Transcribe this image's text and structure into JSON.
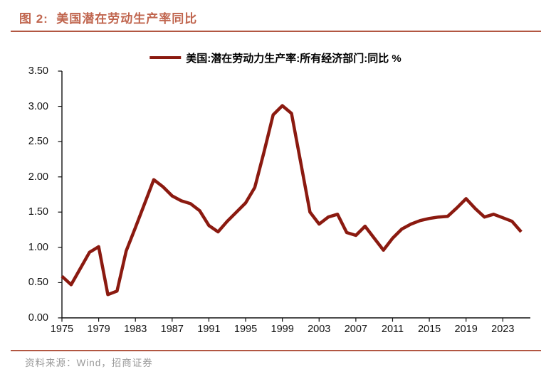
{
  "header": {
    "title": "图 2:  美国潜在劳动生产率同比"
  },
  "legend": {
    "label": "美国:潜在劳动力生产率:所有经济部门:同比 %"
  },
  "footer": {
    "source": "资料来源：Wind，招商证券"
  },
  "colors": {
    "title": "#c0654e",
    "rule": "#b25742",
    "line": "#8b1a10",
    "axis": "#111111",
    "muted_text": "#9a9a9a"
  },
  "chart_data": {
    "type": "line",
    "title": "美国潜在劳动生产率同比",
    "series_name": "美国:潜在劳动力生产率:所有经济部门:同比 %",
    "xlabel": "",
    "ylabel": "",
    "xlim": [
      1975,
      2026
    ],
    "ylim": [
      0,
      3.5
    ],
    "grid": false,
    "legend_position": "top-center",
    "x_ticks": [
      1975,
      1979,
      1983,
      1987,
      1991,
      1995,
      1999,
      2003,
      2007,
      2011,
      2015,
      2019,
      2023
    ],
    "y_ticks": {
      "values": [
        0,
        0.5,
        1.0,
        1.5,
        2.0,
        2.5,
        3.0,
        3.5
      ],
      "labels": [
        "0.00",
        "0.50",
        "1.00",
        "1.50",
        "2.00",
        "2.50",
        "3.00",
        "3.50"
      ]
    },
    "x": [
      1975,
      1976,
      1977,
      1978,
      1979,
      1980,
      1981,
      1982,
      1983,
      1984,
      1985,
      1986,
      1987,
      1988,
      1989,
      1990,
      1991,
      1992,
      1993,
      1994,
      1995,
      1996,
      1997,
      1998,
      1999,
      2000,
      2001,
      2002,
      2003,
      2004,
      2005,
      2006,
      2007,
      2008,
      2009,
      2010,
      2011,
      2012,
      2013,
      2014,
      2015,
      2016,
      2017,
      2018,
      2019,
      2020,
      2021,
      2022,
      2023,
      2024,
      2025
    ],
    "values": [
      0.59,
      0.47,
      0.7,
      0.93,
      1.01,
      0.33,
      0.38,
      0.95,
      1.28,
      1.62,
      1.96,
      1.86,
      1.73,
      1.66,
      1.62,
      1.52,
      1.31,
      1.22,
      1.37,
      1.5,
      1.63,
      1.85,
      2.35,
      2.88,
      3.01,
      2.9,
      2.2,
      1.5,
      1.33,
      1.43,
      1.47,
      1.21,
      1.17,
      1.3,
      1.13,
      0.96,
      1.13,
      1.26,
      1.33,
      1.38,
      1.41,
      1.43,
      1.44,
      1.56,
      1.69,
      1.55,
      1.43,
      1.47,
      1.42,
      1.37,
      1.22
    ]
  }
}
